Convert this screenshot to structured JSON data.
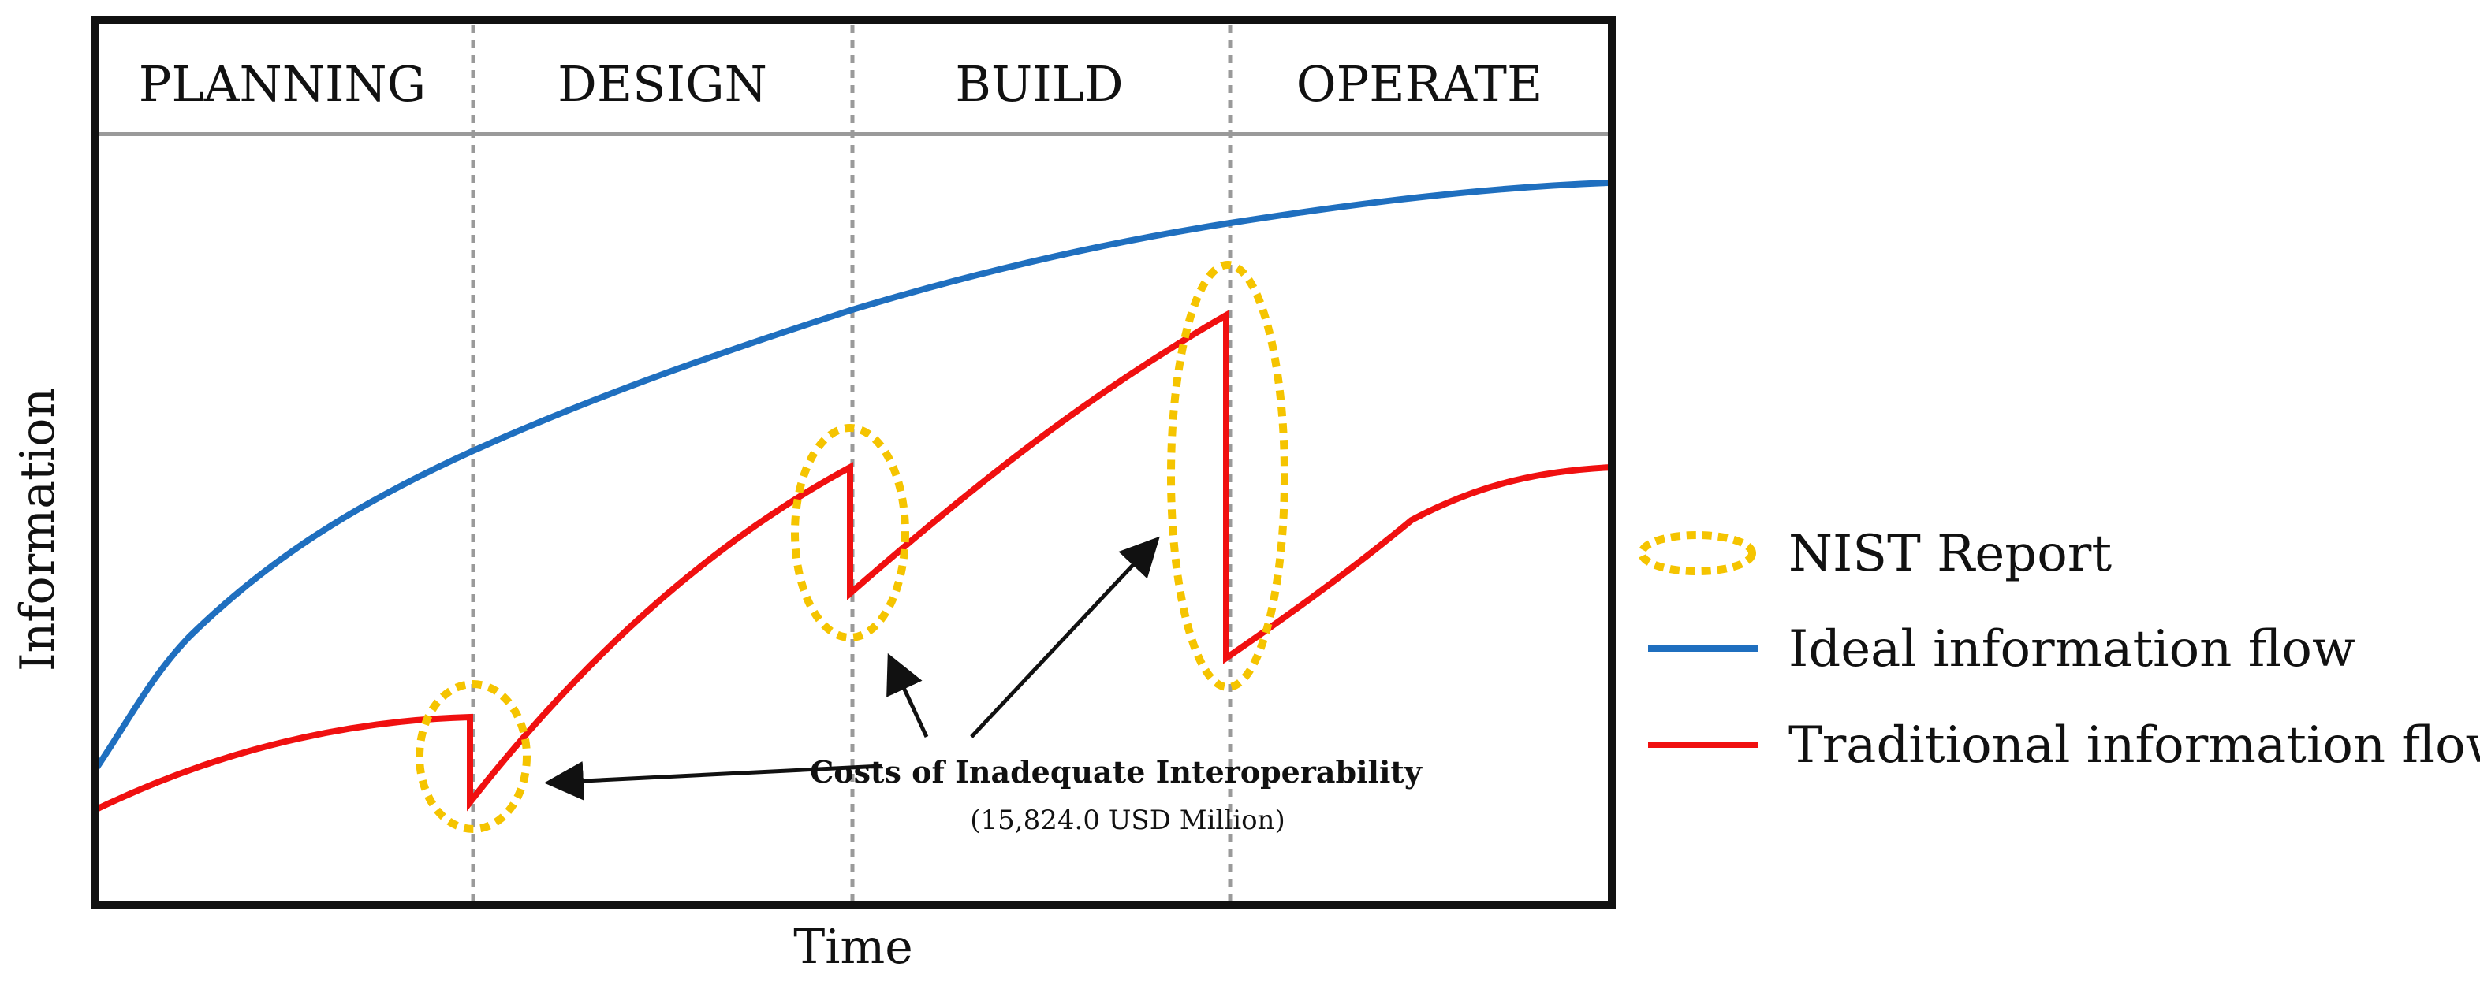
{
  "phases": [
    "PLANNING",
    "DESIGN",
    "BUILD",
    "OPERATE"
  ],
  "axes": {
    "xlabel": "Time",
    "ylabel": "Information"
  },
  "annotation": {
    "title": "Costs of Inadequate Interoperability",
    "subtitle": "(15,824.0 USD Million)"
  },
  "legend": [
    {
      "label": "NIST Report",
      "symbol": "dotted-ellipse",
      "color": "#F5C400"
    },
    {
      "label": "Ideal information flow",
      "symbol": "line",
      "color": "#1F6FBF"
    },
    {
      "label": "Traditional information flow",
      "symbol": "line",
      "color": "#F01010"
    }
  ],
  "colors": {
    "ideal": "#1F6FBF",
    "traditional": "#F01010",
    "nist": "#F5C400",
    "frame": "#111111",
    "divider": "#9a9a9a"
  }
}
